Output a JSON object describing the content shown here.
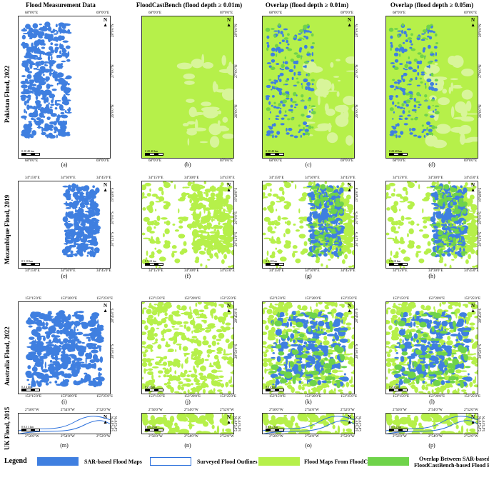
{
  "columns": [
    {
      "header": "Flood Measurement Data"
    },
    {
      "header": "FloodCastBench (flood depth ≥ 0.01m)"
    },
    {
      "header": "Overlap (flood depth ≥ 0.01m)"
    },
    {
      "header": "Overlap (flood depth ≥ 0.05m)"
    }
  ],
  "rows": [
    {
      "label": "Pakistan Flood, 2022",
      "panels": [
        "(a)",
        "(b)",
        "(c)",
        "(d)"
      ],
      "top_coords": [
        "68°0'0\"E",
        "69°0'0\"E"
      ],
      "bottom_coords": [
        "68°0'0\"E",
        "69°0'0\"E"
      ],
      "right_coords": [
        "28°0'0\"N",
        "27°0'0\"N",
        "26°0'0\"N"
      ],
      "scale": "0  20  40",
      "scale_unit": "km"
    },
    {
      "label": "Mozambique Flood, 2019",
      "panels": [
        "(e)",
        "(f)",
        "(g)",
        "(h)"
      ],
      "top_coords": [
        "34°15'0\"E",
        "34°30'0\"E",
        "34°45'0\"E"
      ],
      "bottom_coords": [
        "34°15'0\"E",
        "34°30'0\"E",
        "34°45'0\"E"
      ],
      "right_coords": [
        "19°48'0\"S",
        "20°0'0\"S",
        "20°12'0\"S"
      ],
      "scale": "0  5  10",
      "scale_unit": "km"
    },
    {
      "label": "Australia Flood, 2022",
      "panels": [
        "(i)",
        "(j)",
        "(k)",
        "(l)"
      ],
      "top_coords": [
        "153°15'0\"E",
        "153°20'0\"E",
        "153°25'0\"E"
      ],
      "bottom_coords": [
        "153°15'0\"E",
        "153°20'0\"E",
        "153°25'0\"E"
      ],
      "right_coords": [
        "28°45'0\"S",
        "28°50'0\"S"
      ],
      "scale": "0  2  4",
      "scale_unit": "km"
    },
    {
      "label": "UK Flood, 2015",
      "panels": [
        "(m)",
        "(n)",
        "(o)",
        "(p)"
      ],
      "top_coords": [
        "2°56'0\"W",
        "2°54'0\"W",
        "2°52'0\"W"
      ],
      "bottom_coords": [
        "2°56'0\"W",
        "2°54'0\"W",
        "2°52'0\"W"
      ],
      "right_coords": [
        "54°54'0\"N",
        "54°53'0\"N"
      ],
      "scale": "0 0.5 1",
      "scale_unit": "km"
    }
  ],
  "north": "N",
  "legend": {
    "title": "Legend",
    "items": [
      {
        "label": "SAR-based Flood Maps",
        "color": "#3f7fe0"
      },
      {
        "label": "Surveyed Flood Outlines",
        "color": "#2a6fdb"
      },
      {
        "label": "Flood Maps From FloodCastBench",
        "color": "#b6f04a"
      },
      {
        "label": "Overlap Between SAR-based and",
        "label2": "FloodCastBench-based Flood Extents",
        "color": "#6fd34a"
      }
    ]
  },
  "colors": {
    "sar": "#3f7fe0",
    "outline": "#2a6fdb",
    "fcb": "#b6f04a",
    "overlap": "#6fd34a"
  }
}
